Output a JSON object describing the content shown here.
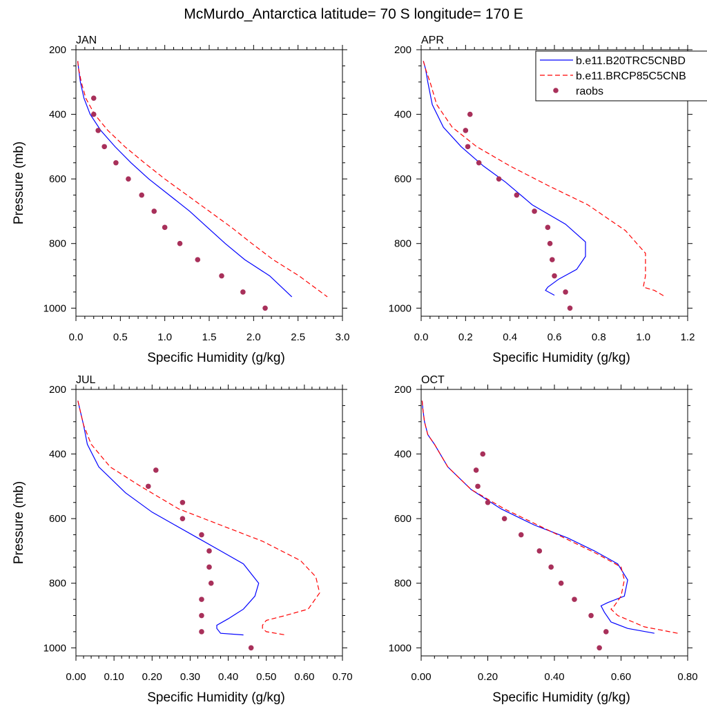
{
  "title": "McMurdo_Antarctica  latitude= 70 S longitude= 170 E",
  "colors": {
    "model_hist": "#0000ff",
    "model_rcp": "#ff0000",
    "raobs": "#a8305a"
  },
  "legend": {
    "placement": "top-right of APR panel",
    "entries": [
      "b.e11.B20TRC5CNBD",
      "b.e11.BRCP85C5CNB",
      "raobs"
    ]
  },
  "chart_data": [
    {
      "type": "line",
      "title": "JAN",
      "xlabel": "Specific Humidity (g/kg)",
      "ylabel": "Pressure (mb)",
      "xlim": [
        0,
        3.0
      ],
      "ylim": [
        200,
        1025
      ],
      "y_inverted": true,
      "xticks": [
        "0.0",
        "0.5",
        "1.0",
        "1.5",
        "2.0",
        "2.5",
        "3.0"
      ],
      "yticks": [
        "200",
        "400",
        "600",
        "800",
        "1000"
      ],
      "series": [
        {
          "name": "b.e11.B20TRC5CNBD",
          "style": "solid",
          "color": "#0000ff",
          "x": [
            0.02,
            0.03,
            0.05,
            0.09,
            0.16,
            0.28,
            0.44,
            0.62,
            0.82,
            1.05,
            1.28,
            1.48,
            1.68,
            1.9,
            2.18,
            2.43
          ],
          "y": [
            235,
            260,
            300,
            350,
            400,
            450,
            500,
            550,
            600,
            650,
            700,
            750,
            800,
            850,
            900,
            965
          ]
        },
        {
          "name": "b.e11.BRCP85C5CNB",
          "style": "dashed",
          "color": "#ff0000",
          "x": [
            0.02,
            0.03,
            0.06,
            0.11,
            0.21,
            0.36,
            0.55,
            0.77,
            1.0,
            1.25,
            1.5,
            1.75,
            1.98,
            2.22,
            2.51,
            2.83
          ],
          "y": [
            235,
            260,
            300,
            350,
            400,
            450,
            500,
            550,
            600,
            650,
            700,
            750,
            800,
            850,
            900,
            965
          ]
        },
        {
          "name": "raobs",
          "style": "markers",
          "color": "#a8305a",
          "x": [
            0.2,
            0.2,
            0.25,
            0.32,
            0.45,
            0.59,
            0.74,
            0.88,
            1.0,
            1.17,
            1.37,
            1.64,
            1.88,
            2.13
          ],
          "y": [
            350,
            400,
            450,
            500,
            550,
            600,
            650,
            700,
            750,
            800,
            850,
            900,
            950,
            1000
          ]
        }
      ]
    },
    {
      "type": "line",
      "title": "APR",
      "xlabel": "Specific Humidity (g/kg)",
      "ylabel": "",
      "xlim": [
        0,
        1.2
      ],
      "ylim": [
        200,
        1025
      ],
      "y_inverted": true,
      "xticks": [
        "0.0",
        "0.2",
        "0.4",
        "0.6",
        "0.8",
        "1.0",
        "1.2"
      ],
      "yticks": [
        "200",
        "400",
        "600",
        "800",
        "1000"
      ],
      "series": [
        {
          "name": "b.e11.B20TRC5CNBD",
          "style": "solid",
          "color": "#0000ff",
          "x": [
            0.01,
            0.02,
            0.03,
            0.05,
            0.1,
            0.18,
            0.28,
            0.38,
            0.5,
            0.65,
            0.74,
            0.74,
            0.7,
            0.62,
            0.57,
            0.56,
            0.6
          ],
          "y": [
            235,
            260,
            300,
            370,
            440,
            500,
            560,
            610,
            680,
            740,
            795,
            840,
            880,
            910,
            935,
            945,
            960
          ]
        },
        {
          "name": "b.e11.BRCP85C5CNB",
          "style": "dashed",
          "color": "#ff0000",
          "x": [
            0.01,
            0.02,
            0.04,
            0.07,
            0.14,
            0.25,
            0.4,
            0.57,
            0.75,
            0.92,
            1.01,
            1.01,
            1.0,
            1.05,
            1.1
          ],
          "y": [
            235,
            260,
            300,
            370,
            440,
            500,
            560,
            620,
            680,
            760,
            830,
            900,
            935,
            945,
            965
          ]
        },
        {
          "name": "raobs",
          "style": "markers",
          "color": "#a8305a",
          "x": [
            0.22,
            0.2,
            0.21,
            0.26,
            0.35,
            0.43,
            0.51,
            0.57,
            0.58,
            0.59,
            0.6,
            0.65,
            0.67
          ],
          "y": [
            400,
            450,
            500,
            550,
            600,
            650,
            700,
            750,
            800,
            850,
            900,
            950,
            1000
          ]
        }
      ]
    },
    {
      "type": "line",
      "title": "JUL",
      "xlabel": "Specific Humidity (g/kg)",
      "ylabel": "Pressure (mb)",
      "xlim": [
        0,
        0.7
      ],
      "ylim": [
        200,
        1025
      ],
      "y_inverted": true,
      "xticks": [
        "0.00",
        "0.10",
        "0.20",
        "0.30",
        "0.40",
        "0.50",
        "0.60",
        "0.70"
      ],
      "yticks": [
        "200",
        "400",
        "600",
        "800",
        "1000"
      ],
      "series": [
        {
          "name": "b.e11.B20TRC5CNBD",
          "style": "solid",
          "color": "#0000ff",
          "x": [
            0.005,
            0.01,
            0.02,
            0.03,
            0.06,
            0.13,
            0.2,
            0.26,
            0.32,
            0.38,
            0.44,
            0.48,
            0.47,
            0.44,
            0.4,
            0.37,
            0.37,
            0.38,
            0.44
          ],
          "y": [
            235,
            260,
            310,
            370,
            440,
            520,
            580,
            620,
            660,
            700,
            740,
            800,
            840,
            880,
            910,
            930,
            940,
            955,
            960
          ]
        },
        {
          "name": "b.e11.BRCP85C5CNB",
          "style": "dashed",
          "color": "#ff0000",
          "x": [
            0.005,
            0.01,
            0.02,
            0.04,
            0.09,
            0.17,
            0.27,
            0.38,
            0.49,
            0.59,
            0.63,
            0.64,
            0.61,
            0.55,
            0.5,
            0.49,
            0.49,
            0.5,
            0.55
          ],
          "y": [
            235,
            260,
            310,
            370,
            440,
            500,
            570,
            620,
            670,
            730,
            780,
            830,
            880,
            900,
            915,
            930,
            940,
            950,
            960
          ]
        },
        {
          "name": "raobs",
          "style": "markers",
          "color": "#a8305a",
          "x": [
            0.21,
            0.19,
            0.28,
            0.28,
            0.33,
            0.35,
            0.35,
            0.355,
            0.33,
            0.33,
            0.33,
            0.46
          ],
          "y": [
            450,
            500,
            550,
            600,
            650,
            700,
            750,
            800,
            850,
            900,
            950,
            1000
          ]
        }
      ]
    },
    {
      "type": "line",
      "title": "OCT",
      "xlabel": "Specific Humidity (g/kg)",
      "ylabel": "",
      "xlim": [
        0,
        0.8
      ],
      "ylim": [
        200,
        1025
      ],
      "y_inverted": true,
      "xticks": [
        "0.00",
        "0.20",
        "0.40",
        "0.60",
        "0.80"
      ],
      "yticks": [
        "200",
        "400",
        "600",
        "800",
        "1000"
      ],
      "series": [
        {
          "name": "b.e11.B20TRC5CNBD",
          "style": "solid",
          "color": "#0000ff",
          "x": [
            0.003,
            0.005,
            0.01,
            0.02,
            0.04,
            0.08,
            0.15,
            0.24,
            0.34,
            0.44,
            0.52,
            0.59,
            0.62,
            0.61,
            0.56,
            0.54,
            0.55,
            0.57,
            0.62,
            0.7
          ],
          "y": [
            235,
            260,
            300,
            340,
            370,
            440,
            510,
            570,
            620,
            660,
            700,
            740,
            790,
            840,
            860,
            870,
            890,
            920,
            940,
            955
          ]
        },
        {
          "name": "b.e11.BRCP85C5CNB",
          "style": "dashed",
          "color": "#ff0000",
          "x": [
            0.003,
            0.005,
            0.01,
            0.02,
            0.04,
            0.08,
            0.15,
            0.25,
            0.35,
            0.45,
            0.53,
            0.6,
            0.61,
            0.6,
            0.58,
            0.57,
            0.59,
            0.67,
            0.77
          ],
          "y": [
            235,
            260,
            300,
            340,
            370,
            440,
            510,
            570,
            620,
            670,
            710,
            750,
            790,
            840,
            870,
            880,
            900,
            935,
            955
          ]
        },
        {
          "name": "raobs",
          "style": "markers",
          "color": "#a8305a",
          "x": [
            0.185,
            0.165,
            0.17,
            0.2,
            0.25,
            0.3,
            0.355,
            0.39,
            0.42,
            0.46,
            0.51,
            0.555,
            0.535
          ],
          "y": [
            400,
            450,
            500,
            550,
            600,
            650,
            700,
            750,
            800,
            850,
            900,
            950,
            1000
          ]
        }
      ]
    }
  ]
}
